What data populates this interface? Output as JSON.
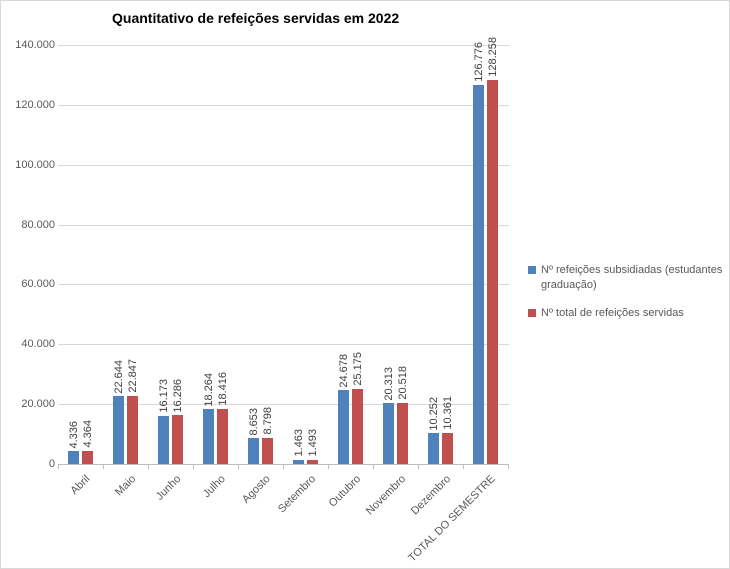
{
  "title": "Quantitativo de refeições servidas em 2022",
  "colors": {
    "series1": "#4F81BD",
    "series2": "#C0504D",
    "gridline": "#D9D9D9",
    "axis_line": "#BFBFBF",
    "axis_text": "#595959",
    "data_label_text": "#3F3F3F"
  },
  "chart_data": {
    "type": "bar",
    "title": "Quantitativo de refeições servidas em 2022",
    "categories": [
      "Abril",
      "Maio",
      "Junho",
      "Julho",
      "Agosto",
      "Setembro",
      "Outubro",
      "Novembro",
      "Dezembro",
      "TOTAL DO SEMESTRE"
    ],
    "series": [
      {
        "name": "Nº refeições subsidiadas (estudantes graduação)",
        "color": "#4F81BD",
        "values": [
          4336,
          22644,
          16173,
          18264,
          8653,
          1463,
          24678,
          20313,
          10252,
          126776
        ],
        "labels": [
          "4.336",
          "22.644",
          "16.173",
          "18.264",
          "8.653",
          "1.463",
          "24.678",
          "20.313",
          "10.252",
          "126.776"
        ]
      },
      {
        "name": "Nº total de refeições servidas",
        "color": "#C0504D",
        "values": [
          4364,
          22847,
          16286,
          18416,
          8798,
          1493,
          25175,
          20518,
          10361,
          128258
        ],
        "labels": [
          "4.364",
          "22.847",
          "16.286",
          "18.416",
          "8.798",
          "1.493",
          "25.175",
          "20.518",
          "10.361",
          "128.258"
        ]
      }
    ],
    "ylim": [
      0,
      140000
    ],
    "ytick_step": 20000,
    "ytick_labels": [
      "0",
      "20.000",
      "40.000",
      "60.000",
      "80.000",
      "100.000",
      "120.000",
      "140.000"
    ],
    "grid": true,
    "data_labels": "rotated-90-above-bars",
    "category_labels": "rotated-45",
    "legend_position": "right"
  }
}
